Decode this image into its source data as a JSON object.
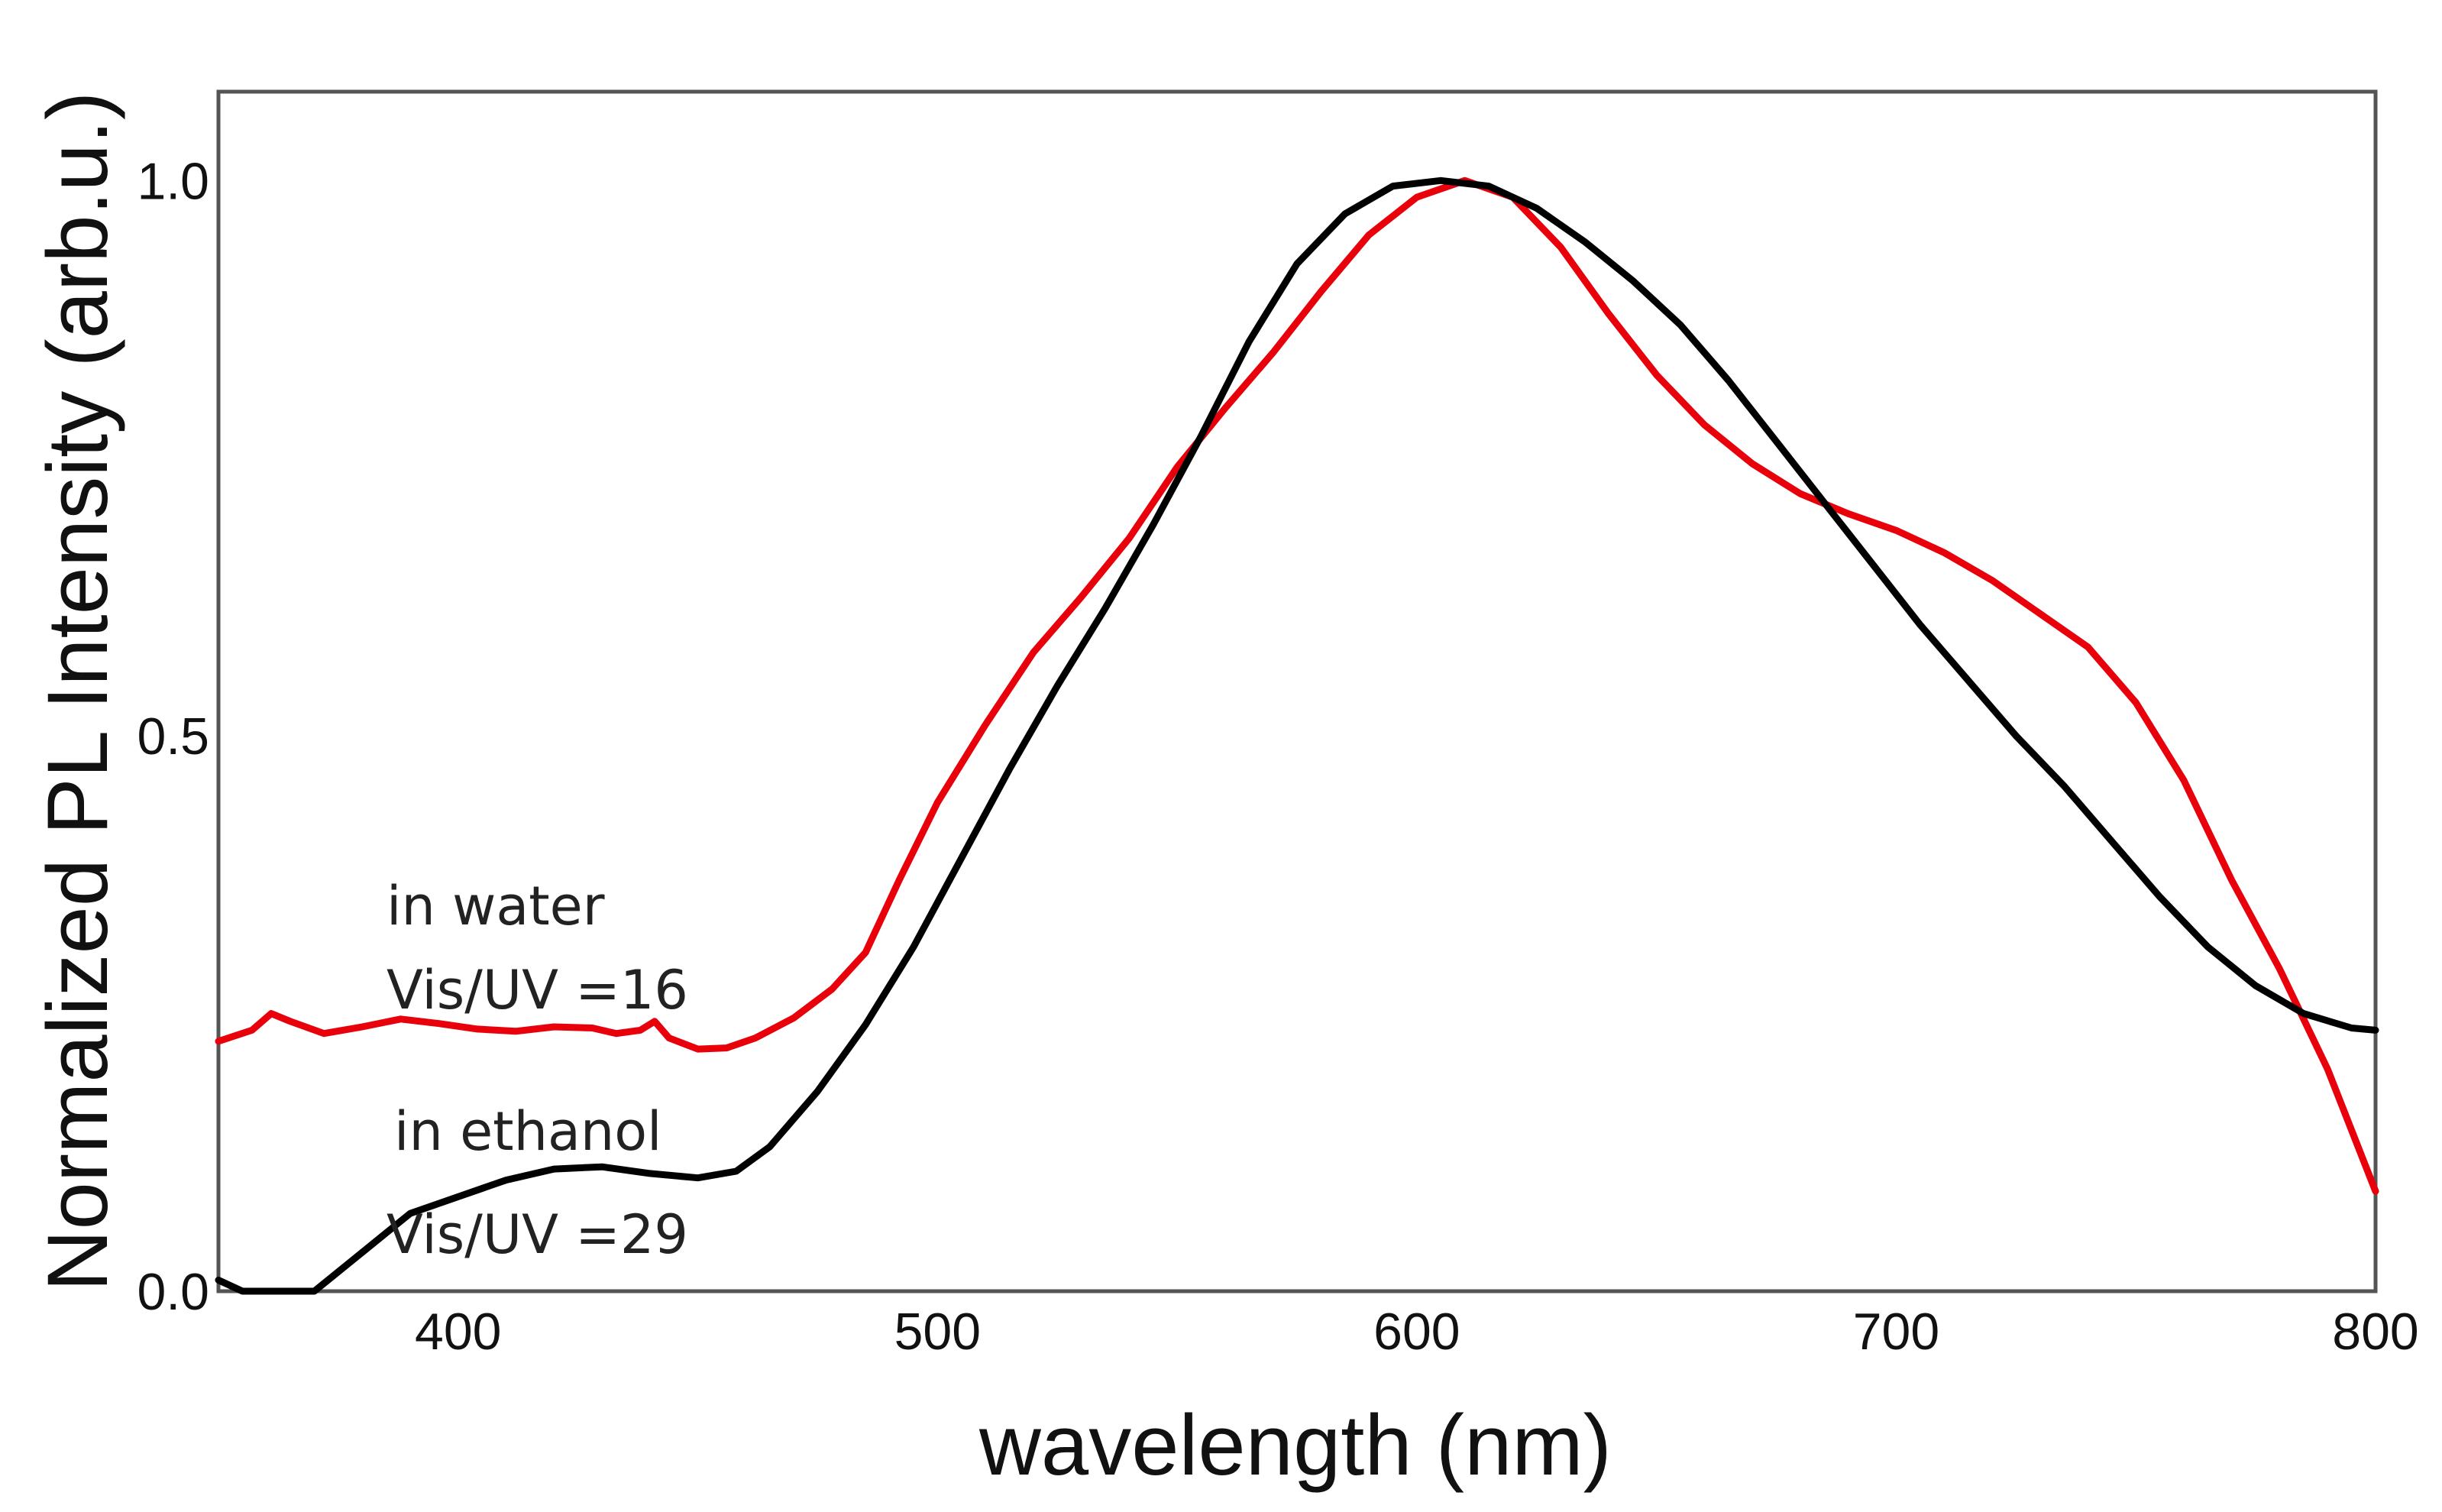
{
  "chart_data": {
    "type": "line",
    "title": "",
    "xlabel": "wavelength (nm)",
    "ylabel": "Normalized PL Intensity (arb.u.)",
    "xlim": [
      350,
      800
    ],
    "ylim": [
      0.0,
      1.08
    ],
    "x_ticks": [
      400,
      500,
      600,
      700,
      800
    ],
    "x_tick_labels": [
      "400",
      "500",
      "600",
      "700",
      "800"
    ],
    "y_ticks": [
      0.0,
      0.5,
      1.0
    ],
    "y_tick_labels": [
      "0.0",
      "0.5",
      "1.0"
    ],
    "grid": false,
    "series": [
      {
        "name": "in water",
        "color": "#e8000b",
        "points": [
          [
            350,
            0.225
          ],
          [
            357,
            0.235
          ],
          [
            361,
            0.25
          ],
          [
            365,
            0.243
          ],
          [
            372,
            0.232
          ],
          [
            380,
            0.238
          ],
          [
            388,
            0.245
          ],
          [
            396,
            0.241
          ],
          [
            404,
            0.236
          ],
          [
            412,
            0.234
          ],
          [
            420,
            0.238
          ],
          [
            428,
            0.237
          ],
          [
            433,
            0.232
          ],
          [
            438,
            0.235
          ],
          [
            441,
            0.243
          ],
          [
            444,
            0.228
          ],
          [
            450,
            0.218
          ],
          [
            456,
            0.219
          ],
          [
            462,
            0.228
          ],
          [
            470,
            0.246
          ],
          [
            478,
            0.272
          ],
          [
            485,
            0.305
          ],
          [
            492,
            0.37
          ],
          [
            500,
            0.44
          ],
          [
            510,
            0.51
          ],
          [
            520,
            0.575
          ],
          [
            530,
            0.625
          ],
          [
            540,
            0.678
          ],
          [
            550,
            0.742
          ],
          [
            560,
            0.795
          ],
          [
            570,
            0.845
          ],
          [
            580,
            0.9
          ],
          [
            590,
            0.951
          ],
          [
            600,
            0.985
          ],
          [
            610,
            1.0
          ],
          [
            620,
            0.985
          ],
          [
            630,
            0.94
          ],
          [
            640,
            0.88
          ],
          [
            650,
            0.825
          ],
          [
            660,
            0.78
          ],
          [
            670,
            0.745
          ],
          [
            680,
            0.718
          ],
          [
            690,
            0.7
          ],
          [
            700,
            0.685
          ],
          [
            710,
            0.665
          ],
          [
            720,
            0.64
          ],
          [
            730,
            0.61
          ],
          [
            740,
            0.58
          ],
          [
            750,
            0.53
          ],
          [
            760,
            0.46
          ],
          [
            770,
            0.37
          ],
          [
            780,
            0.29
          ],
          [
            790,
            0.2
          ],
          [
            800,
            0.09
          ]
        ]
      },
      {
        "name": "in ethanol",
        "color": "#000000",
        "points": [
          [
            350,
            0.01
          ],
          [
            355,
            0.0
          ],
          [
            360,
            0.0
          ],
          [
            370,
            0.0
          ],
          [
            380,
            0.035
          ],
          [
            390,
            0.07
          ],
          [
            400,
            0.085
          ],
          [
            410,
            0.1
          ],
          [
            420,
            0.11
          ],
          [
            430,
            0.112
          ],
          [
            440,
            0.106
          ],
          [
            450,
            0.102
          ],
          [
            458,
            0.108
          ],
          [
            465,
            0.13
          ],
          [
            475,
            0.18
          ],
          [
            485,
            0.24
          ],
          [
            495,
            0.31
          ],
          [
            505,
            0.39
          ],
          [
            515,
            0.47
          ],
          [
            525,
            0.545
          ],
          [
            535,
            0.615
          ],
          [
            545,
            0.69
          ],
          [
            555,
            0.77
          ],
          [
            565,
            0.855
          ],
          [
            575,
            0.925
          ],
          [
            585,
            0.97
          ],
          [
            595,
            0.995
          ],
          [
            605,
            1.0
          ],
          [
            615,
            0.995
          ],
          [
            625,
            0.975
          ],
          [
            635,
            0.945
          ],
          [
            645,
            0.91
          ],
          [
            655,
            0.87
          ],
          [
            665,
            0.82
          ],
          [
            675,
            0.765
          ],
          [
            685,
            0.71
          ],
          [
            695,
            0.655
          ],
          [
            705,
            0.6
          ],
          [
            715,
            0.55
          ],
          [
            725,
            0.5
          ],
          [
            735,
            0.455
          ],
          [
            745,
            0.405
          ],
          [
            755,
            0.355
          ],
          [
            765,
            0.31
          ],
          [
            775,
            0.275
          ],
          [
            785,
            0.25
          ],
          [
            795,
            0.237
          ],
          [
            800,
            0.235
          ]
        ]
      }
    ],
    "annotations": [
      {
        "name": "water-label",
        "lines": [
          "in water",
          "Vis/UV =16"
        ]
      },
      {
        "name": "ethanol-label",
        "lines": [
          "in ethanol",
          "Vis/UV =29"
        ]
      }
    ]
  }
}
